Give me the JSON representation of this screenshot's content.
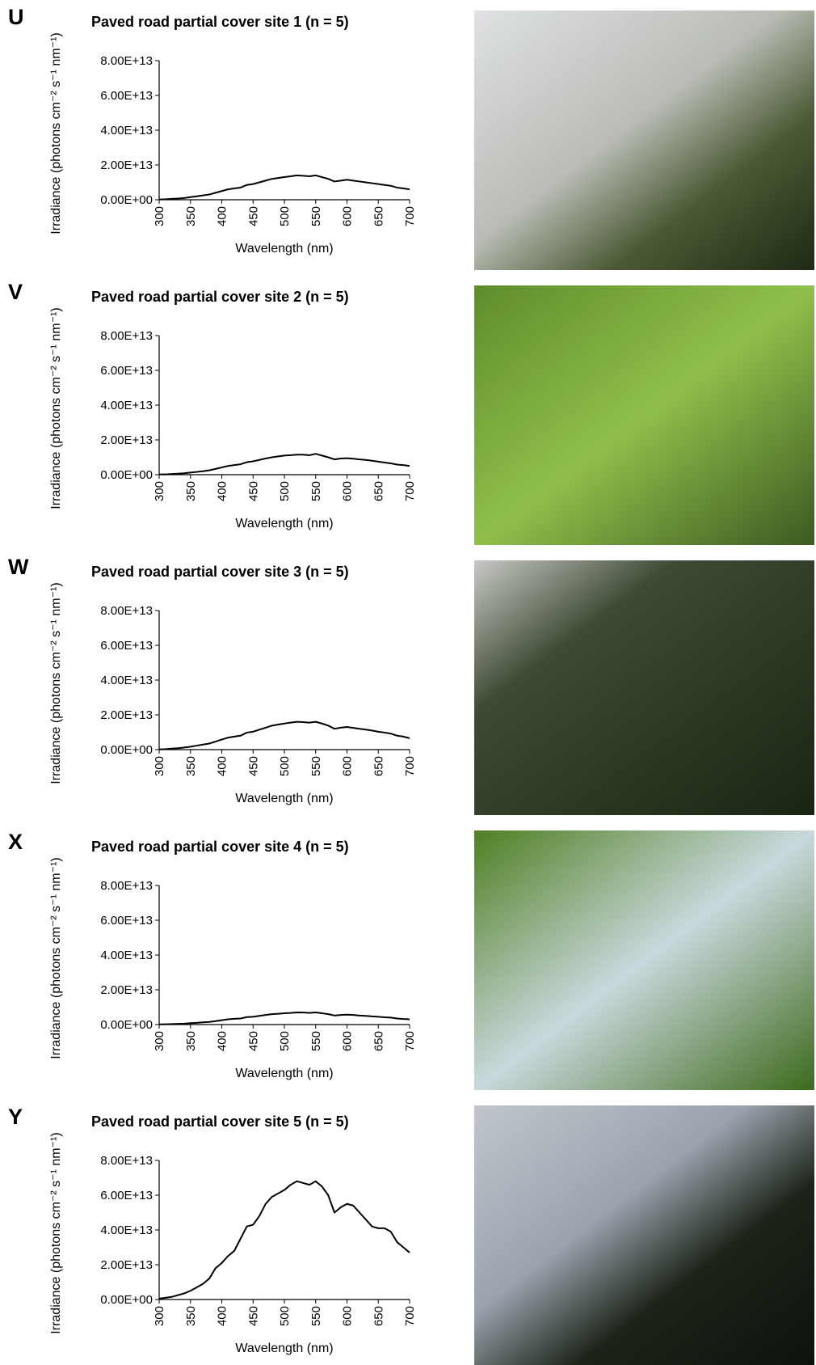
{
  "chart_data": [
    {
      "type": "line",
      "panel_label": "U",
      "title": "Paved road partial cover site 1 (n = 5)",
      "xlabel": "Wavelength (nm)",
      "ylabel": "Irradiance (photons cm⁻² s⁻¹ nm⁻¹)",
      "x": [
        300,
        310,
        320,
        330,
        340,
        350,
        360,
        370,
        380,
        390,
        400,
        410,
        420,
        430,
        440,
        450,
        460,
        470,
        480,
        490,
        500,
        510,
        520,
        530,
        540,
        550,
        560,
        570,
        580,
        590,
        600,
        610,
        620,
        630,
        640,
        650,
        660,
        670,
        680,
        690,
        700
      ],
      "values": [
        200000000000.0,
        300000000000.0,
        500000000000.0,
        700000000000.0,
        1000000000000.0,
        1500000000000.0,
        2000000000000.0,
        2500000000000.0,
        3000000000000.0,
        4000000000000.0,
        5000000000000.0,
        6000000000000.0,
        6500000000000.0,
        7000000000000.0,
        8500000000000.0,
        9000000000000.0,
        10000000000000.0,
        11000000000000.0,
        12000000000000.0,
        12500000000000.0,
        13000000000000.0,
        13500000000000.0,
        14000000000000.0,
        13800000000000.0,
        13500000000000.0,
        14000000000000.0,
        13000000000000.0,
        12000000000000.0,
        10500000000000.0,
        11000000000000.0,
        11500000000000.0,
        11000000000000.0,
        10500000000000.0,
        10000000000000.0,
        9500000000000.0,
        9000000000000.0,
        8500000000000.0,
        8000000000000.0,
        7000000000000.0,
        6500000000000.0,
        6000000000000.0
      ],
      "color": "#000000",
      "xlim": [
        300,
        700
      ],
      "ylim": [
        0,
        80000000000000.0
      ],
      "xticks": [
        300,
        350,
        400,
        450,
        500,
        550,
        600,
        650,
        700
      ],
      "yticks": [
        {
          "value": 0,
          "label": "0.00E+00"
        },
        {
          "value": 20000000000000.0,
          "label": "2.00E+13"
        },
        {
          "value": 40000000000000.0,
          "label": "4.00E+13"
        },
        {
          "value": 60000000000000.0,
          "label": "6.00E+13"
        },
        {
          "value": 80000000000000.0,
          "label": "8.00E+13"
        }
      ]
    },
    {
      "type": "line",
      "panel_label": "V",
      "title": "Paved road partial cover site 2 (n = 5)",
      "xlabel": "Wavelength (nm)",
      "ylabel": "Irradiance (photons cm⁻² s⁻¹ nm⁻¹)",
      "x": [
        300,
        310,
        320,
        330,
        340,
        350,
        360,
        370,
        380,
        390,
        400,
        410,
        420,
        430,
        440,
        450,
        460,
        470,
        480,
        490,
        500,
        510,
        520,
        530,
        540,
        550,
        560,
        570,
        580,
        590,
        600,
        610,
        620,
        630,
        640,
        650,
        660,
        670,
        680,
        690,
        700
      ],
      "values": [
        200000000000.0,
        200000000000.0,
        400000000000.0,
        600000000000.0,
        800000000000.0,
        1200000000000.0,
        1600000000000.0,
        2000000000000.0,
        2500000000000.0,
        3300000000000.0,
        4200000000000.0,
        5000000000000.0,
        5500000000000.0,
        6000000000000.0,
        7200000000000.0,
        7700000000000.0,
        8500000000000.0,
        9300000000000.0,
        10000000000000.0,
        10500000000000.0,
        11000000000000.0,
        11200000000000.0,
        11500000000000.0,
        11500000000000.0,
        11200000000000.0,
        12000000000000.0,
        11000000000000.0,
        10000000000000.0,
        8800000000000.0,
        9300000000000.0,
        9500000000000.0,
        9200000000000.0,
        8800000000000.0,
        8500000000000.0,
        8000000000000.0,
        7500000000000.0,
        7000000000000.0,
        6500000000000.0,
        5800000000000.0,
        5500000000000.0,
        5000000000000.0
      ],
      "color": "#000000",
      "xlim": [
        300,
        700
      ],
      "ylim": [
        0,
        80000000000000.0
      ],
      "xticks": [
        300,
        350,
        400,
        450,
        500,
        550,
        600,
        650,
        700
      ],
      "yticks": [
        {
          "value": 0,
          "label": "0.00E+00"
        },
        {
          "value": 20000000000000.0,
          "label": "2.00E+13"
        },
        {
          "value": 40000000000000.0,
          "label": "4.00E+13"
        },
        {
          "value": 60000000000000.0,
          "label": "6.00E+13"
        },
        {
          "value": 80000000000000.0,
          "label": "8.00E+13"
        }
      ]
    },
    {
      "type": "line",
      "panel_label": "W",
      "title": "Paved road partial cover site 3 (n = 5)",
      "xlabel": "Wavelength (nm)",
      "ylabel": "Irradiance (photons cm⁻² s⁻¹ nm⁻¹)",
      "x": [
        300,
        310,
        320,
        330,
        340,
        350,
        360,
        370,
        380,
        390,
        400,
        410,
        420,
        430,
        440,
        450,
        460,
        470,
        480,
        490,
        500,
        510,
        520,
        530,
        540,
        550,
        560,
        570,
        580,
        590,
        600,
        610,
        620,
        630,
        640,
        650,
        660,
        670,
        680,
        690,
        700
      ],
      "values": [
        200000000000.0,
        300000000000.0,
        600000000000.0,
        800000000000.0,
        1200000000000.0,
        1700000000000.0,
        2300000000000.0,
        2900000000000.0,
        3500000000000.0,
        4600000000000.0,
        5800000000000.0,
        6900000000000.0,
        7500000000000.0,
        8000000000000.0,
        9800000000000.0,
        10300000000000.0,
        11500000000000.0,
        12600000000000.0,
        13800000000000.0,
        14400000000000.0,
        15000000000000.0,
        15500000000000.0,
        16000000000000.0,
        15800000000000.0,
        15500000000000.0,
        16000000000000.0,
        15000000000000.0,
        13800000000000.0,
        12000000000000.0,
        12600000000000.0,
        13000000000000.0,
        12500000000000.0,
        12000000000000.0,
        11500000000000.0,
        11000000000000.0,
        10300000000000.0,
        9800000000000.0,
        9200000000000.0,
        8000000000000.0,
        7500000000000.0,
        6500000000000.0
      ],
      "color": "#000000",
      "xlim": [
        300,
        700
      ],
      "ylim": [
        0,
        80000000000000.0
      ],
      "xticks": [
        300,
        350,
        400,
        450,
        500,
        550,
        600,
        650,
        700
      ],
      "yticks": [
        {
          "value": 0,
          "label": "0.00E+00"
        },
        {
          "value": 20000000000000.0,
          "label": "2.00E+13"
        },
        {
          "value": 40000000000000.0,
          "label": "4.00E+13"
        },
        {
          "value": 60000000000000.0,
          "label": "6.00E+13"
        },
        {
          "value": 80000000000000.0,
          "label": "8.00E+13"
        }
      ]
    },
    {
      "type": "line",
      "panel_label": "X",
      "title": "Paved road partial cover site 4 (n = 5)",
      "xlabel": "Wavelength (nm)",
      "ylabel": "Irradiance (photons cm⁻² s⁻¹ nm⁻¹)",
      "x": [
        300,
        310,
        320,
        330,
        340,
        350,
        360,
        370,
        380,
        390,
        400,
        410,
        420,
        430,
        440,
        450,
        460,
        470,
        480,
        490,
        500,
        510,
        520,
        530,
        540,
        550,
        560,
        570,
        580,
        590,
        600,
        610,
        620,
        630,
        640,
        650,
        660,
        670,
        680,
        690,
        700
      ],
      "values": [
        100000000000.0,
        200000000000.0,
        300000000000.0,
        400000000000.0,
        500000000000.0,
        800000000000.0,
        1000000000000.0,
        1300000000000.0,
        1500000000000.0,
        2000000000000.0,
        2500000000000.0,
        3000000000000.0,
        3300000000000.0,
        3500000000000.0,
        4300000000000.0,
        4500000000000.0,
        5000000000000.0,
        5500000000000.0,
        6000000000000.0,
        6200000000000.0,
        6500000000000.0,
        6700000000000.0,
        7000000000000.0,
        6900000000000.0,
        6700000000000.0,
        7000000000000.0,
        6500000000000.0,
        6000000000000.0,
        5200000000000.0,
        5500000000000.0,
        5700000000000.0,
        5500000000000.0,
        5200000000000.0,
        5000000000000.0,
        4700000000000.0,
        4500000000000.0,
        4200000000000.0,
        4000000000000.0,
        3500000000000.0,
        3200000000000.0,
        3000000000000.0
      ],
      "color": "#000000",
      "xlim": [
        300,
        700
      ],
      "ylim": [
        0,
        80000000000000.0
      ],
      "xticks": [
        300,
        350,
        400,
        450,
        500,
        550,
        600,
        650,
        700
      ],
      "yticks": [
        {
          "value": 0,
          "label": "0.00E+00"
        },
        {
          "value": 20000000000000.0,
          "label": "2.00E+13"
        },
        {
          "value": 40000000000000.0,
          "label": "4.00E+13"
        },
        {
          "value": 60000000000000.0,
          "label": "6.00E+13"
        },
        {
          "value": 80000000000000.0,
          "label": "8.00E+13"
        }
      ]
    },
    {
      "type": "line",
      "panel_label": "Y",
      "title": "Paved road partial cover site 5 (n = 5)",
      "xlabel": "Wavelength (nm)",
      "ylabel": "Irradiance (photons cm⁻² s⁻¹ nm⁻¹)",
      "x": [
        300,
        310,
        320,
        330,
        340,
        350,
        360,
        370,
        380,
        390,
        400,
        410,
        420,
        430,
        440,
        450,
        460,
        470,
        480,
        490,
        500,
        510,
        520,
        530,
        540,
        550,
        560,
        570,
        580,
        590,
        600,
        610,
        620,
        630,
        640,
        650,
        660,
        670,
        680,
        690,
        700
      ],
      "values": [
        500000000000.0,
        1000000000000.0,
        1500000000000.0,
        2500000000000.0,
        3500000000000.0,
        5000000000000.0,
        7000000000000.0,
        9000000000000.0,
        12000000000000.0,
        18000000000000.0,
        21000000000000.0,
        25000000000000.0,
        28000000000000.0,
        35000000000000.0,
        42000000000000.0,
        43000000000000.0,
        48000000000000.0,
        55000000000000.0,
        59000000000000.0,
        61000000000000.0,
        63000000000000.0,
        66000000000000.0,
        68000000000000.0,
        67000000000000.0,
        66000000000000.0,
        68000000000000.0,
        65000000000000.0,
        60000000000000.0,
        50000000000000.0,
        53000000000000.0,
        55000000000000.0,
        54000000000000.0,
        50000000000000.0,
        46000000000000.0,
        42000000000000.0,
        41000000000000.0,
        41000000000000.0,
        39000000000000.0,
        33000000000000.0,
        30000000000000.0,
        27000000000000.0
      ],
      "color": "#000000",
      "xlim": [
        300,
        700
      ],
      "ylim": [
        0,
        80000000000000.0
      ],
      "xticks": [
        300,
        350,
        400,
        450,
        500,
        550,
        600,
        650,
        700
      ],
      "yticks": [
        {
          "value": 0,
          "label": "0.00E+00"
        },
        {
          "value": 20000000000000.0,
          "label": "2.00E+13"
        },
        {
          "value": 40000000000000.0,
          "label": "4.00E+13"
        },
        {
          "value": 60000000000000.0,
          "label": "6.00E+13"
        },
        {
          "value": 80000000000000.0,
          "label": "8.00E+13"
        }
      ]
    }
  ]
}
